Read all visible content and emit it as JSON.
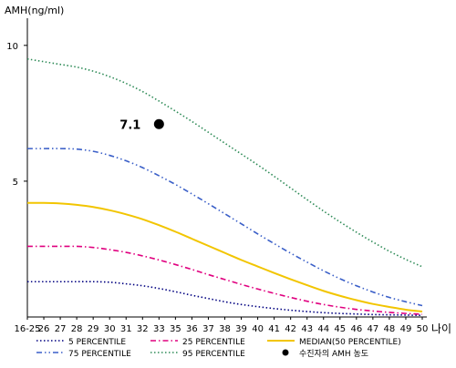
{
  "chart_data": {
    "type": "line",
    "title": "",
    "ylabel": "AMH(ng/ml)",
    "xlabel": "나이",
    "ylim": [
      0,
      11
    ],
    "yticks": [
      5,
      10
    ],
    "categories": [
      "16-25",
      "26",
      "27",
      "28",
      "29",
      "30",
      "31",
      "32",
      "33",
      "35",
      "36",
      "37",
      "38",
      "39",
      "40",
      "41",
      "42",
      "43",
      "44",
      "45",
      "46",
      "47",
      "48",
      "49",
      "50"
    ],
    "series": [
      {
        "name": "5 PERCENTILE",
        "color": "#000080",
        "dash": "dot",
        "values": [
          1.3,
          1.3,
          1.3,
          1.3,
          1.3,
          1.28,
          1.22,
          1.15,
          1.05,
          0.93,
          0.8,
          0.68,
          0.56,
          0.46,
          0.38,
          0.31,
          0.25,
          0.2,
          0.16,
          0.13,
          0.11,
          0.09,
          0.08,
          0.07,
          0.06
        ]
      },
      {
        "name": "25 PERCENTILE",
        "color": "#e0007f",
        "dash": "dashdot",
        "values": [
          2.6,
          2.6,
          2.6,
          2.6,
          2.56,
          2.48,
          2.38,
          2.25,
          2.1,
          1.93,
          1.75,
          1.56,
          1.38,
          1.2,
          1.03,
          0.87,
          0.72,
          0.58,
          0.46,
          0.36,
          0.28,
          0.22,
          0.17,
          0.13,
          0.1
        ]
      },
      {
        "name": "MEDIAN(50 PERCENTILE)",
        "color": "#f2c500",
        "dash": "solid",
        "values": [
          4.2,
          4.2,
          4.18,
          4.13,
          4.05,
          3.93,
          3.78,
          3.6,
          3.38,
          3.14,
          2.88,
          2.62,
          2.36,
          2.1,
          1.86,
          1.62,
          1.39,
          1.17,
          0.96,
          0.78,
          0.62,
          0.48,
          0.37,
          0.27,
          0.2
        ]
      },
      {
        "name": "75 PERCENTILE",
        "color": "#3a5fc8",
        "dash": "dashdotdot",
        "values": [
          6.2,
          6.2,
          6.2,
          6.18,
          6.1,
          5.95,
          5.75,
          5.5,
          5.2,
          4.88,
          4.53,
          4.17,
          3.8,
          3.43,
          3.06,
          2.7,
          2.35,
          2.02,
          1.7,
          1.41,
          1.15,
          0.92,
          0.72,
          0.56,
          0.42
        ]
      },
      {
        "name": "95 PERCENTILE",
        "color": "#2e8b57",
        "dash": "dot",
        "values": [
          9.5,
          9.4,
          9.3,
          9.2,
          9.05,
          8.85,
          8.6,
          8.3,
          7.95,
          7.58,
          7.2,
          6.8,
          6.4,
          6.0,
          5.6,
          5.18,
          4.75,
          4.32,
          3.9,
          3.5,
          3.12,
          2.76,
          2.42,
          2.12,
          1.85
        ]
      }
    ],
    "point": {
      "label": "수진자의 AMH 농도",
      "x": "33",
      "y": 7.1,
      "value_label": "7.1",
      "color": "#000000"
    },
    "legend_placement": "bottom",
    "grid": false
  }
}
